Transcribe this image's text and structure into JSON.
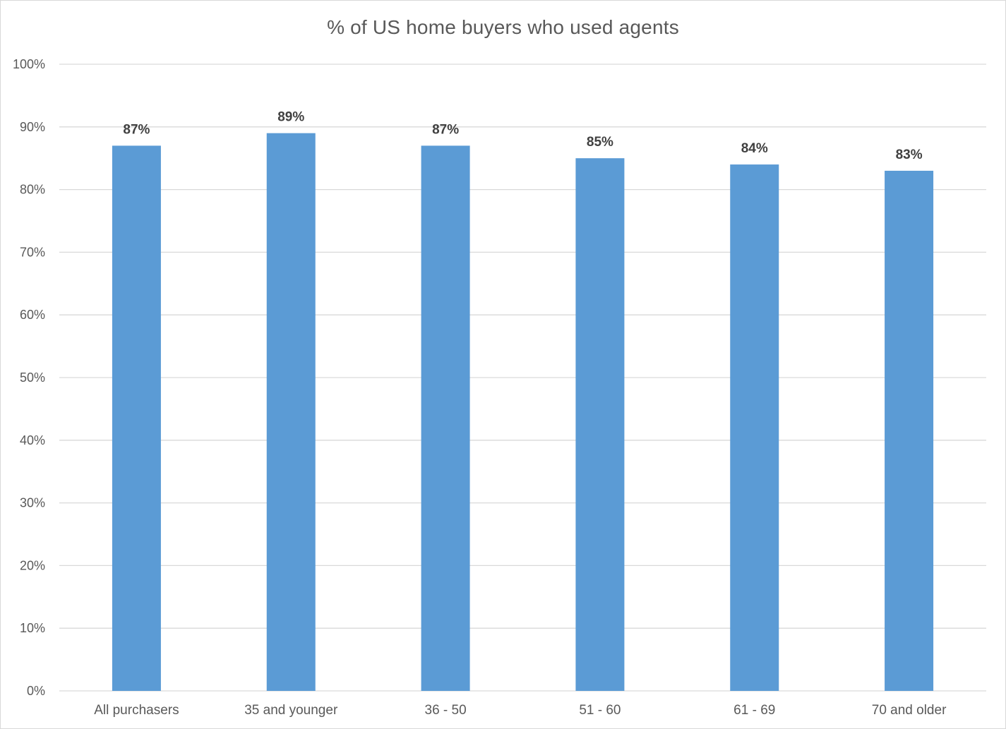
{
  "chart_data": {
    "type": "bar",
    "title": "% of US home buyers who used agents",
    "categories": [
      "All purchasers",
      "35 and younger",
      "36 - 50",
      "51 - 60",
      "61 - 69",
      "70 and older"
    ],
    "values": [
      87,
      89,
      87,
      85,
      84,
      83
    ],
    "data_labels": [
      "87%",
      "89%",
      "87%",
      "85%",
      "84%",
      "83%"
    ],
    "xlabel": "",
    "ylabel": "",
    "ylim": [
      0,
      100
    ],
    "yticks": [
      0,
      10,
      20,
      30,
      40,
      50,
      60,
      70,
      80,
      90,
      100
    ],
    "ytick_labels": [
      "0%",
      "10%",
      "20%",
      "30%",
      "40%",
      "50%",
      "60%",
      "70%",
      "80%",
      "90%",
      "100%"
    ],
    "grid": true,
    "legend": "none",
    "colors": {
      "bar": "#5b9bd5",
      "grid": "#d9d9d9",
      "text": "#595959",
      "data_label": "#404040"
    }
  }
}
